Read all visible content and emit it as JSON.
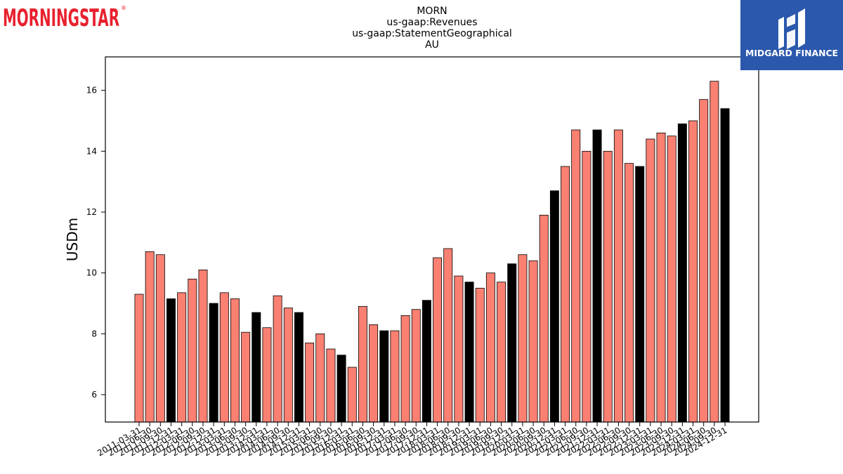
{
  "header": {
    "brand_left": "MORNINGSTAR",
    "brand_right": "MIDGARD FINANCE"
  },
  "colors": {
    "bar_default": "#fa8072",
    "bar_highlight": "#000000",
    "logo_red": "#e8212e",
    "logo_blue": "#2b58ac"
  },
  "chart_data": {
    "type": "bar",
    "title_lines": [
      "MORN",
      "us-gaap:Revenues",
      "us-gaap:StatementGeographical",
      "AU"
    ],
    "xlabel": "",
    "ylabel": "USDm",
    "ylim": [
      5.1,
      17.1
    ],
    "yticks": [
      6,
      8,
      10,
      12,
      14,
      16
    ],
    "grid": false,
    "categories": [
      "2011-03-31",
      "2011-06-30",
      "2011-09-30",
      "2011-12-31",
      "2012-03-31",
      "2012-06-30",
      "2012-09-30",
      "2012-12-31",
      "2013-03-31",
      "2013-06-30",
      "2013-09-30",
      "2013-12-31",
      "2014-03-31",
      "2014-06-30",
      "2014-09-30",
      "2014-12-31",
      "2015-03-31",
      "2015-06-30",
      "2015-09-30",
      "2015-12-31",
      "2016-03-31",
      "2016-06-30",
      "2016-09-30",
      "2016-12-31",
      "2017-03-31",
      "2017-06-30",
      "2017-09-30",
      "2017-12-31",
      "2018-03-31",
      "2018-06-30",
      "2018-09-30",
      "2018-12-31",
      "2019-03-31",
      "2019-06-30",
      "2019-09-30",
      "2019-12-31",
      "2020-03-31",
      "2020-06-30",
      "2020-09-30",
      "2020-12-31",
      "2021-03-31",
      "2021-06-30",
      "2021-09-30",
      "2021-12-31",
      "2022-03-31",
      "2022-06-30",
      "2022-09-30",
      "2022-12-31",
      "2023-03-31",
      "2023-06-30",
      "2023-09-30",
      "2023-12-31",
      "2024-03-31",
      "2024-06-30",
      "2024-09-30",
      "2024-12-31"
    ],
    "values": [
      9.3,
      10.7,
      10.6,
      9.15,
      9.35,
      9.8,
      10.1,
      9.0,
      9.35,
      9.15,
      8.05,
      8.7,
      8.2,
      9.25,
      8.85,
      8.7,
      7.7,
      8.0,
      7.5,
      7.3,
      6.9,
      8.9,
      8.3,
      8.1,
      8.1,
      8.6,
      8.8,
      9.1,
      10.5,
      10.8,
      9.9,
      9.7,
      9.5,
      10.0,
      9.7,
      10.3,
      10.6,
      10.4,
      11.9,
      12.7,
      13.5,
      14.7,
      14.0,
      14.7,
      14.0,
      14.7,
      13.6,
      13.5,
      14.4,
      14.6,
      14.5,
      14.9,
      15.0,
      15.7,
      16.3,
      15.4
    ],
    "highlight": [
      false,
      false,
      false,
      true,
      false,
      false,
      false,
      true,
      false,
      false,
      false,
      true,
      false,
      false,
      false,
      true,
      false,
      false,
      false,
      true,
      false,
      false,
      false,
      true,
      false,
      false,
      false,
      true,
      false,
      false,
      false,
      true,
      false,
      false,
      false,
      true,
      false,
      false,
      false,
      true,
      false,
      false,
      false,
      true,
      false,
      false,
      false,
      true,
      false,
      false,
      false,
      true,
      false,
      false,
      false,
      true
    ]
  }
}
